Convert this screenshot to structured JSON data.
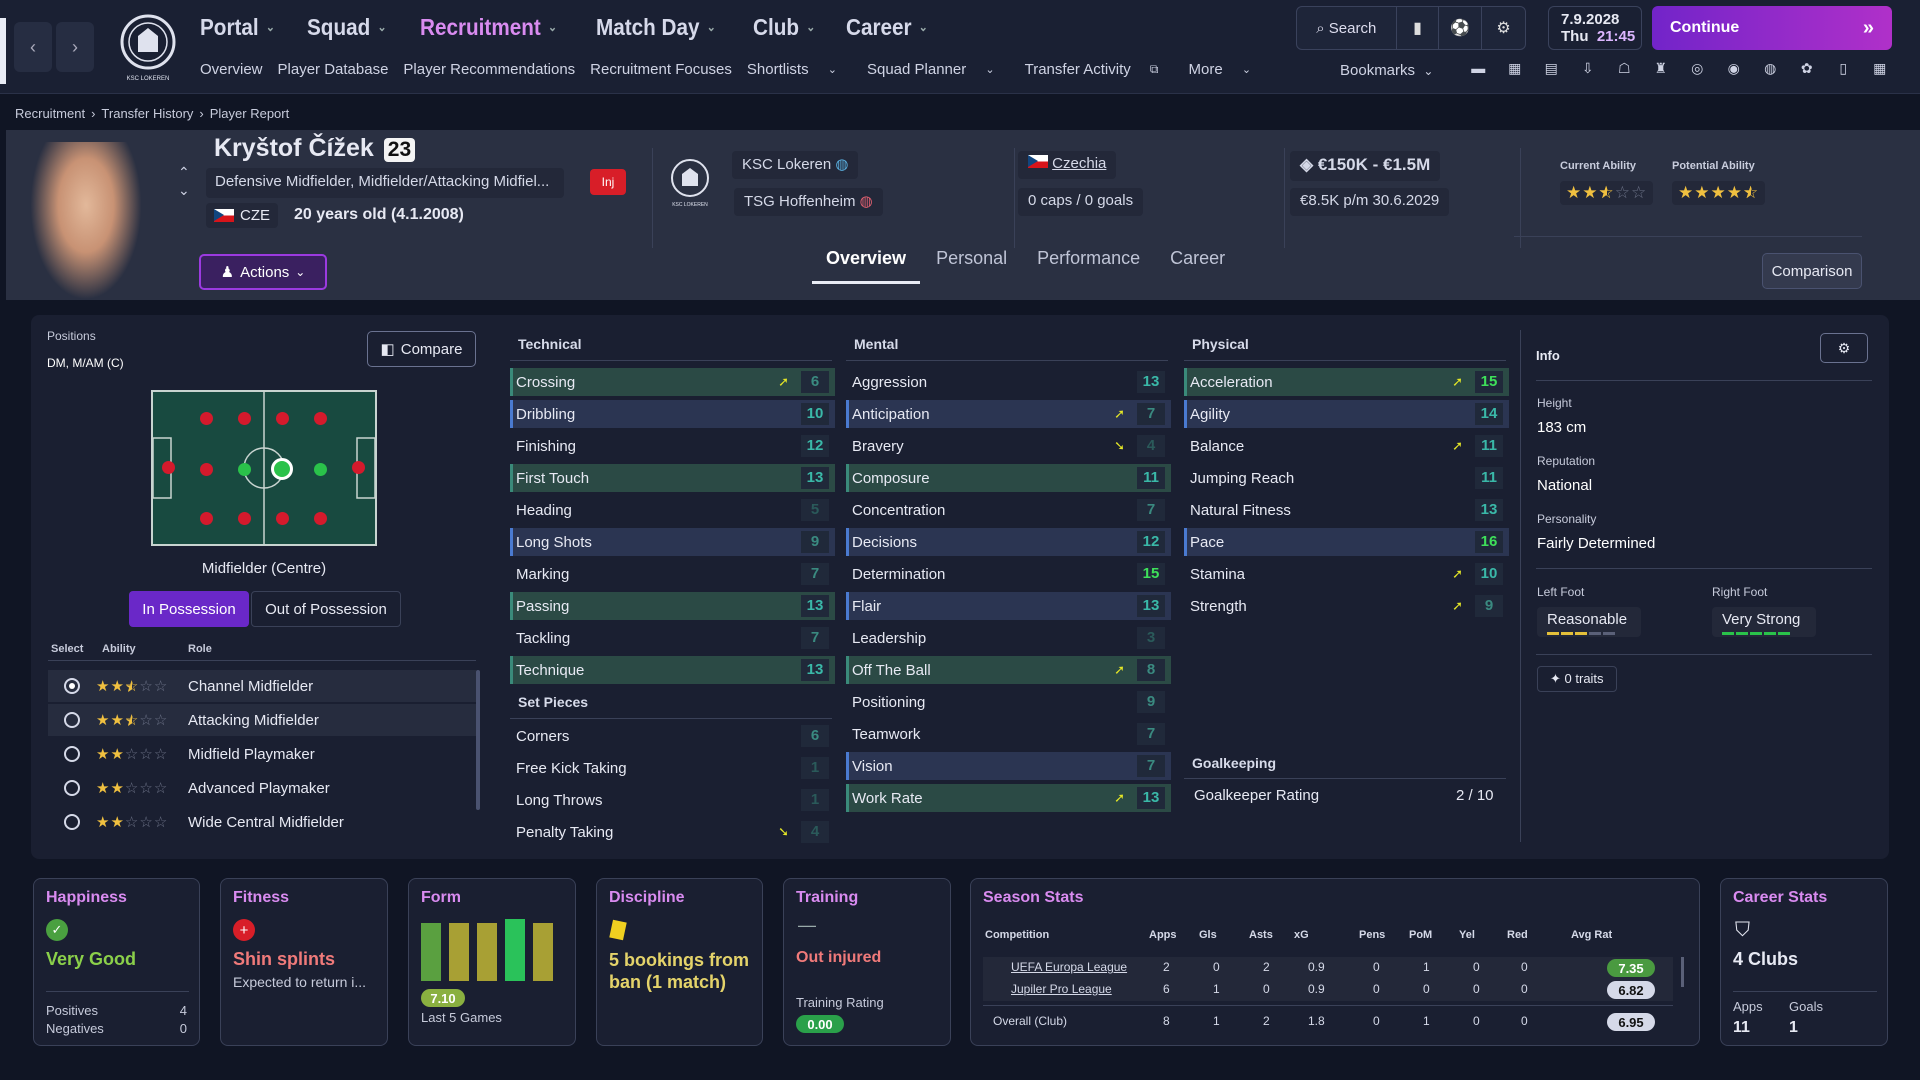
{
  "nav": {
    "main": [
      {
        "label": "Portal"
      },
      {
        "label": "Squad"
      },
      {
        "label": "Recruitment"
      },
      {
        "label": "Match Day"
      },
      {
        "label": "Club"
      },
      {
        "label": "Career"
      }
    ],
    "sub": [
      "Overview",
      "Player Database",
      "Player Recommendations",
      "Recruitment Focuses",
      "Shortlists",
      "Squad Planner",
      "Transfer Activity",
      "More"
    ],
    "search_label": "Search",
    "date": "7.9.2028",
    "day": "Thu",
    "time": "21:45",
    "continue_label": "Continue",
    "bookmarks_label": "Bookmarks"
  },
  "breadcrumb": [
    "Recruitment",
    "Transfer History",
    "Player Report"
  ],
  "player": {
    "name": "Kryštof Čížek",
    "number": "23",
    "positions": "Defensive Midfielder, Midfielder/Attacking Midfiel...",
    "nationality_code": "CZE",
    "age": "20 years old (4.1.2008)",
    "injury_badge": "Inj",
    "actions_label": "Actions",
    "club": "KSC Lokeren",
    "loan_club": "TSG Hoffenheim",
    "nation": "Czechia",
    "caps": "0 caps / 0 goals",
    "value": "€150K - €1.5M",
    "contract": "€8.5K p/m 30.6.2029",
    "current_ability_label": "Current Ability",
    "potential_ability_label": "Potential Ability",
    "current_ability": 2.5,
    "potential_ability": 4.5
  },
  "tabs": [
    "Overview",
    "Personal",
    "Performance",
    "Career"
  ],
  "comparison_label": "Comparison",
  "positions_panel": {
    "title": "Positions",
    "value": "DM, M/AM (C)",
    "compare_label": "Compare",
    "role_label": "Midfielder (Centre)",
    "in_possession": "In Possession",
    "out_possession": "Out of Possession",
    "headers": [
      "Select",
      "Ability",
      "Role"
    ],
    "roles": [
      {
        "name": "Channel Midfielder",
        "stars": 2.5,
        "selected": true
      },
      {
        "name": "Attacking Midfielder",
        "stars": 2.5
      },
      {
        "name": "Midfield Playmaker",
        "stars": 2
      },
      {
        "name": "Advanced Playmaker",
        "stars": 2
      },
      {
        "name": "Wide Central Midfielder",
        "stars": 2
      }
    ]
  },
  "technical": {
    "title": "Technical",
    "rows": [
      {
        "name": "Crossing",
        "value": "6",
        "style": "hl",
        "arrow": "up"
      },
      {
        "name": "Dribbling",
        "value": "10",
        "style": "hb"
      },
      {
        "name": "Finishing",
        "value": "12"
      },
      {
        "name": "First Touch",
        "value": "13",
        "style": "hl"
      },
      {
        "name": "Heading",
        "value": "5"
      },
      {
        "name": "Long Shots",
        "value": "9",
        "style": "hb"
      },
      {
        "name": "Marking",
        "value": "7"
      },
      {
        "name": "Passing",
        "value": "13",
        "style": "hl"
      },
      {
        "name": "Tackling",
        "value": "7"
      },
      {
        "name": "Technique",
        "value": "13",
        "style": "hl"
      }
    ]
  },
  "setpieces": {
    "title": "Set Pieces",
    "rows": [
      {
        "name": "Corners",
        "value": "6"
      },
      {
        "name": "Free Kick Taking",
        "value": "1"
      },
      {
        "name": "Long Throws",
        "value": "1"
      },
      {
        "name": "Penalty Taking",
        "value": "4",
        "arrow": "down"
      }
    ]
  },
  "mental": {
    "title": "Mental",
    "rows": [
      {
        "name": "Aggression",
        "value": "13"
      },
      {
        "name": "Anticipation",
        "value": "7",
        "style": "hb",
        "arrow": "up"
      },
      {
        "name": "Bravery",
        "value": "4",
        "arrow": "down"
      },
      {
        "name": "Composure",
        "value": "11",
        "style": "hl"
      },
      {
        "name": "Concentration",
        "value": "7"
      },
      {
        "name": "Decisions",
        "value": "12",
        "style": "hb"
      },
      {
        "name": "Determination",
        "value": "15"
      },
      {
        "name": "Flair",
        "value": "13",
        "style": "hb"
      },
      {
        "name": "Leadership",
        "value": "3"
      },
      {
        "name": "Off The Ball",
        "value": "8",
        "style": "hl",
        "arrow": "up"
      },
      {
        "name": "Positioning",
        "value": "9"
      },
      {
        "name": "Teamwork",
        "value": "7"
      },
      {
        "name": "Vision",
        "value": "7",
        "style": "hb"
      },
      {
        "name": "Work Rate",
        "value": "13",
        "style": "hl",
        "arrow": "up"
      }
    ]
  },
  "physical": {
    "title": "Physical",
    "rows": [
      {
        "name": "Acceleration",
        "value": "15",
        "style": "hl",
        "arrow": "up"
      },
      {
        "name": "Agility",
        "value": "14",
        "style": "hb"
      },
      {
        "name": "Balance",
        "value": "11",
        "arrow": "up"
      },
      {
        "name": "Jumping Reach",
        "value": "11"
      },
      {
        "name": "Natural Fitness",
        "value": "13"
      },
      {
        "name": "Pace",
        "value": "16",
        "style": "hb"
      },
      {
        "name": "Stamina",
        "value": "10",
        "arrow": "up"
      },
      {
        "name": "Strength",
        "value": "9",
        "arrow": "up"
      }
    ]
  },
  "goalkeeping": {
    "title": "Goalkeeping",
    "label": "Goalkeeper Rating",
    "value": "2 / 10"
  },
  "info": {
    "title": "Info",
    "height_label": "Height",
    "height": "183 cm",
    "reputation_label": "Reputation",
    "reputation": "National",
    "personality_label": "Personality",
    "personality": "Fairly Determined",
    "left_foot_label": "Left Foot",
    "left_foot": "Reasonable",
    "right_foot_label": "Right Foot",
    "right_foot": "Very Strong",
    "traits": "0 traits"
  },
  "cards": {
    "happiness": {
      "title": "Happiness",
      "status": "Very Good",
      "positives_label": "Positives",
      "positives": "4",
      "negatives_label": "Negatives",
      "negatives": "0"
    },
    "fitness": {
      "title": "Fitness",
      "status": "Shin splints",
      "detail": "Expected to return i..."
    },
    "form": {
      "title": "Form",
      "rating": "7.10",
      "label": "Last 5 Games"
    },
    "discipline": {
      "title": "Discipline",
      "text": "5 bookings from ban (1 match)"
    },
    "training": {
      "title": "Training",
      "dash": "—",
      "status": "Out injured",
      "rating_label": "Training Rating",
      "rating": "0.00"
    },
    "season": {
      "title": "Season Stats",
      "headers": [
        "Competition",
        "Apps",
        "Gls",
        "Asts",
        "xG",
        "Pens",
        "PoM",
        "Yel",
        "Red",
        "Avg Rat"
      ],
      "rows": [
        [
          "UEFA Europa League",
          "2",
          "0",
          "2",
          "0.9",
          "0",
          "1",
          "0",
          "0",
          "7.35"
        ],
        [
          "Jupiler Pro League",
          "6",
          "1",
          "0",
          "0.9",
          "0",
          "0",
          "0",
          "0",
          "6.82"
        ],
        [
          "Overall (Club)",
          "8",
          "1",
          "2",
          "1.8",
          "0",
          "1",
          "0",
          "0",
          "6.95"
        ]
      ]
    },
    "career": {
      "title": "Career Stats",
      "clubs": "4 Clubs",
      "apps_label": "Apps",
      "apps": "11",
      "goals_label": "Goals",
      "goals": "1"
    }
  },
  "colors": {
    "accent": "#9b3ae0",
    "active_nav": "#d98bf0",
    "good": "#2aa04a",
    "injury": "#d81e28"
  }
}
